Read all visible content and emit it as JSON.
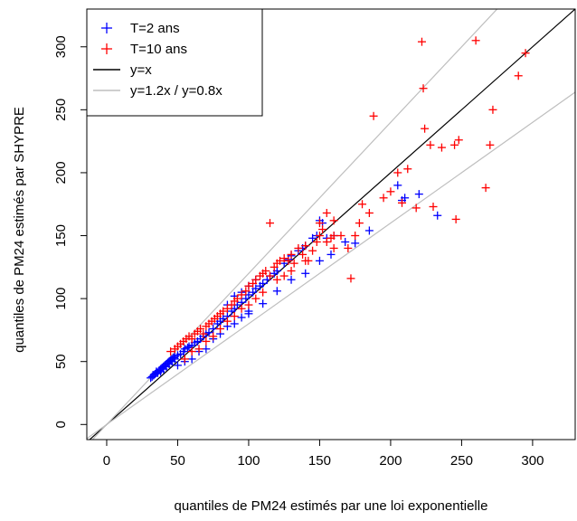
{
  "chart_data": {
    "type": "scatter",
    "xlabel": "quantiles de PM24 estimés par une loi exponentielle",
    "ylabel": "quantiles de PM24 estimés par SHYPRE",
    "xlim": [
      -14,
      330
    ],
    "ylim": [
      -12,
      330
    ],
    "xticks": [
      0,
      50,
      100,
      150,
      200,
      250,
      300
    ],
    "yticks": [
      0,
      50,
      100,
      150,
      200,
      250,
      300
    ],
    "grid": false,
    "legend_position": "top-left",
    "legend": [
      {
        "label": "T=2 ans",
        "kind": "marker",
        "color": "#0000ff"
      },
      {
        "label": "T=10 ans",
        "kind": "marker",
        "color": "#ff0000"
      },
      {
        "label": "y=x",
        "kind": "line",
        "color": "#000000"
      },
      {
        "label": "y=1.2x / y=0.8x",
        "kind": "line",
        "color": "#bebebe"
      }
    ],
    "reference_lines": [
      {
        "name": "y=x",
        "slope": 1.0,
        "color": "#000000"
      },
      {
        "name": "y=1.2x",
        "slope": 1.2,
        "color": "#bebebe"
      },
      {
        "name": "y=0.8x",
        "slope": 0.8,
        "color": "#bebebe"
      }
    ],
    "series": [
      {
        "name": "T=2 ans",
        "color": "#0000ff",
        "points": [
          [
            31,
            37
          ],
          [
            32,
            38
          ],
          [
            33,
            39
          ],
          [
            34,
            40
          ],
          [
            35,
            41
          ],
          [
            35,
            42
          ],
          [
            36,
            41
          ],
          [
            37,
            43
          ],
          [
            38,
            42
          ],
          [
            38,
            44
          ],
          [
            39,
            45
          ],
          [
            40,
            44
          ],
          [
            40,
            46
          ],
          [
            41,
            47
          ],
          [
            42,
            46
          ],
          [
            42,
            48
          ],
          [
            43,
            49
          ],
          [
            44,
            48
          ],
          [
            44,
            50
          ],
          [
            45,
            51
          ],
          [
            46,
            50
          ],
          [
            46,
            52
          ],
          [
            47,
            53
          ],
          [
            48,
            52
          ],
          [
            48,
            54
          ],
          [
            50,
            55
          ],
          [
            52,
            56
          ],
          [
            54,
            58
          ],
          [
            55,
            60
          ],
          [
            57,
            61
          ],
          [
            58,
            62
          ],
          [
            60,
            63
          ],
          [
            62,
            65
          ],
          [
            64,
            66
          ],
          [
            66,
            68
          ],
          [
            68,
            70
          ],
          [
            70,
            72
          ],
          [
            72,
            73
          ],
          [
            75,
            76
          ],
          [
            78,
            80
          ],
          [
            80,
            82
          ],
          [
            82,
            84
          ],
          [
            85,
            86
          ],
          [
            88,
            90
          ],
          [
            90,
            92
          ],
          [
            92,
            95
          ],
          [
            95,
            97
          ],
          [
            98,
            100
          ],
          [
            100,
            103
          ],
          [
            103,
            105
          ],
          [
            105,
            108
          ],
          [
            108,
            110
          ],
          [
            110,
            112
          ],
          [
            113,
            115
          ],
          [
            115,
            118
          ],
          [
            118,
            120
          ],
          [
            120,
            122
          ],
          [
            125,
            128
          ],
          [
            128,
            131
          ],
          [
            130,
            134
          ],
          [
            135,
            138
          ],
          [
            138,
            140
          ],
          [
            140,
            142
          ],
          [
            145,
            148
          ],
          [
            148,
            150
          ],
          [
            150,
            162
          ],
          [
            152,
            160
          ],
          [
            155,
            148
          ],
          [
            160,
            150
          ],
          [
            168,
            145
          ],
          [
            175,
            144
          ],
          [
            185,
            154
          ],
          [
            205,
            190
          ],
          [
            208,
            178
          ],
          [
            210,
            180
          ],
          [
            220,
            183
          ],
          [
            233,
            166
          ],
          [
            85,
            95
          ],
          [
            90,
            102
          ],
          [
            95,
            105
          ],
          [
            100,
            110
          ],
          [
            105,
            115
          ],
          [
            50,
            47
          ],
          [
            55,
            50
          ],
          [
            60,
            52
          ],
          [
            65,
            58
          ],
          [
            70,
            60
          ],
          [
            75,
            68
          ],
          [
            80,
            72
          ],
          [
            85,
            78
          ],
          [
            90,
            80
          ],
          [
            95,
            85
          ],
          [
            100,
            88
          ],
          [
            110,
            96
          ],
          [
            120,
            106
          ],
          [
            130,
            115
          ],
          [
            140,
            120
          ],
          [
            150,
            130
          ],
          [
            158,
            135
          ],
          [
            100,
            90
          ]
        ]
      },
      {
        "name": "T=10 ans",
        "color": "#ff0000",
        "points": [
          [
            45,
            58
          ],
          [
            48,
            60
          ],
          [
            50,
            62
          ],
          [
            52,
            64
          ],
          [
            54,
            66
          ],
          [
            56,
            68
          ],
          [
            58,
            70
          ],
          [
            60,
            68
          ],
          [
            62,
            72
          ],
          [
            64,
            74
          ],
          [
            66,
            76
          ],
          [
            68,
            72
          ],
          [
            70,
            78
          ],
          [
            72,
            80
          ],
          [
            74,
            82
          ],
          [
            76,
            84
          ],
          [
            78,
            86
          ],
          [
            80,
            88
          ],
          [
            82,
            90
          ],
          [
            85,
            92
          ],
          [
            88,
            95
          ],
          [
            90,
            98
          ],
          [
            92,
            100
          ],
          [
            95,
            103
          ],
          [
            98,
            106
          ],
          [
            100,
            110
          ],
          [
            103,
            112
          ],
          [
            105,
            115
          ],
          [
            108,
            118
          ],
          [
            110,
            120
          ],
          [
            112,
            122
          ],
          [
            115,
            118
          ],
          [
            118,
            125
          ],
          [
            120,
            128
          ],
          [
            122,
            130
          ],
          [
            125,
            132
          ],
          [
            128,
            130
          ],
          [
            130,
            135
          ],
          [
            132,
            128
          ],
          [
            135,
            140
          ],
          [
            138,
            135
          ],
          [
            140,
            142
          ],
          [
            142,
            130
          ],
          [
            145,
            138
          ],
          [
            148,
            145
          ],
          [
            150,
            150
          ],
          [
            152,
            155
          ],
          [
            155,
            145
          ],
          [
            158,
            148
          ],
          [
            160,
            150
          ],
          [
            115,
            160
          ],
          [
            150,
            160
          ],
          [
            155,
            168
          ],
          [
            160,
            162
          ],
          [
            165,
            150
          ],
          [
            170,
            140
          ],
          [
            172,
            116
          ],
          [
            178,
            160
          ],
          [
            180,
            175
          ],
          [
            185,
            168
          ],
          [
            188,
            245
          ],
          [
            195,
            180
          ],
          [
            200,
            185
          ],
          [
            205,
            200
          ],
          [
            208,
            176
          ],
          [
            212,
            203
          ],
          [
            218,
            172
          ],
          [
            222,
            304
          ],
          [
            223,
            267
          ],
          [
            224,
            235
          ],
          [
            228,
            222
          ],
          [
            230,
            173
          ],
          [
            236,
            220
          ],
          [
            245,
            222
          ],
          [
            248,
            226
          ],
          [
            246,
            163
          ],
          [
            260,
            305
          ],
          [
            267,
            188
          ],
          [
            270,
            222
          ],
          [
            272,
            250
          ],
          [
            290,
            277
          ],
          [
            295,
            295
          ],
          [
            55,
            52
          ],
          [
            60,
            58
          ],
          [
            65,
            60
          ],
          [
            70,
            66
          ],
          [
            75,
            70
          ],
          [
            80,
            76
          ],
          [
            85,
            82
          ],
          [
            90,
            86
          ],
          [
            95,
            92
          ],
          [
            100,
            95
          ],
          [
            105,
            100
          ],
          [
            110,
            105
          ],
          [
            120,
            115
          ],
          [
            125,
            118
          ],
          [
            130,
            122
          ],
          [
            140,
            130
          ],
          [
            160,
            140
          ],
          [
            175,
            150
          ]
        ]
      }
    ]
  }
}
